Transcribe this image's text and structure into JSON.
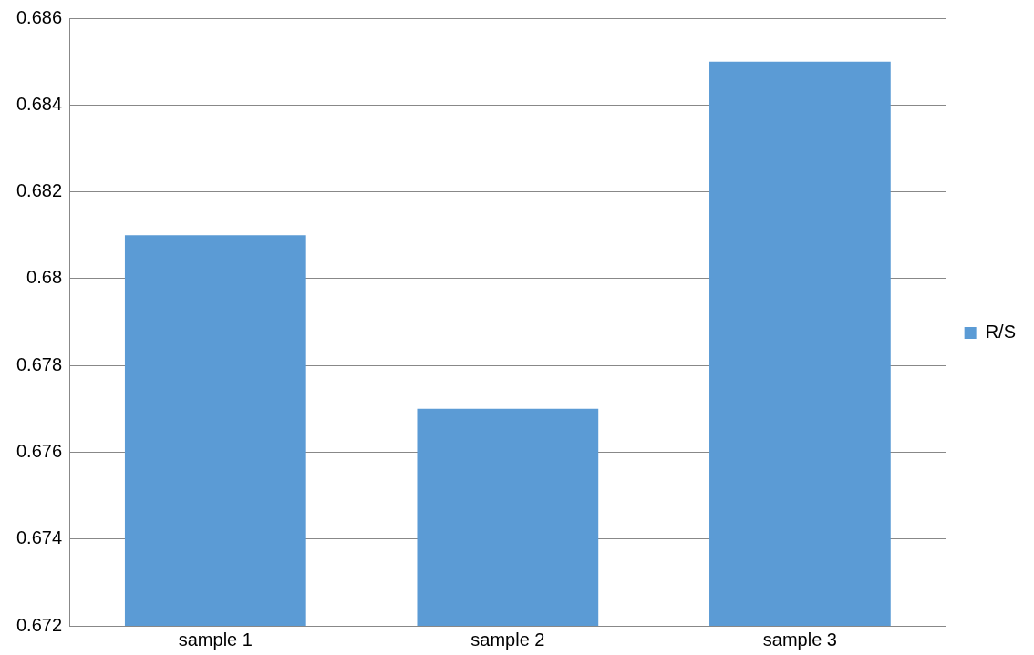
{
  "chart_data": {
    "type": "bar",
    "categories": [
      "sample 1",
      "sample 2",
      "sample 3"
    ],
    "series": [
      {
        "name": "R/S",
        "color": "#5b9bd5",
        "values": [
          0.681,
          0.677,
          0.685
        ]
      }
    ],
    "ylim": [
      0.672,
      0.686
    ],
    "yticks": [
      0.672,
      0.674,
      0.676,
      0.678,
      0.68,
      0.682,
      0.684,
      0.686
    ],
    "grid": "y",
    "legend": "right"
  }
}
